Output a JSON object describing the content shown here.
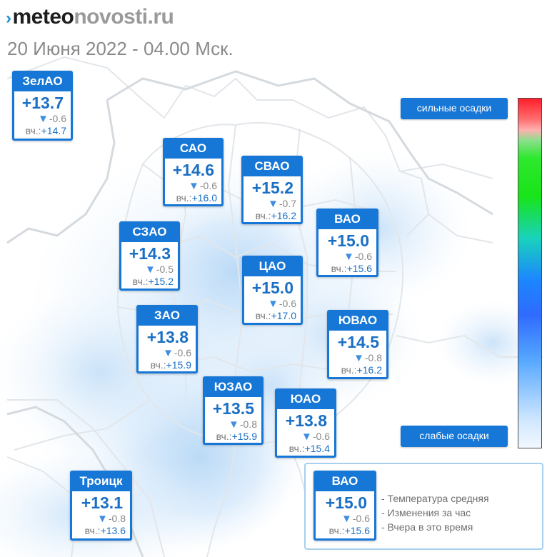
{
  "header": {
    "logo_chevron": "›",
    "logo_bold": "meteo",
    "logo_light": "novosti.ru",
    "subtitle": "20 Июня 2022 - 04.00 Мск."
  },
  "delta_marker": "▼",
  "yesterday_label": "вч.:",
  "districts": [
    {
      "id": "zelao",
      "name": "ЗелАО",
      "temp": "+13.7",
      "delta": "-0.6",
      "yesterday": "+14.7"
    },
    {
      "id": "sao",
      "name": "САО",
      "temp": "+14.6",
      "delta": "-0.6",
      "yesterday": "+16.0"
    },
    {
      "id": "svao",
      "name": "СВАО",
      "temp": "+15.2",
      "delta": "-0.7",
      "yesterday": "+16.2"
    },
    {
      "id": "vao",
      "name": "ВАО",
      "temp": "+15.0",
      "delta": "-0.6",
      "yesterday": "+15.6"
    },
    {
      "id": "szao",
      "name": "СЗАО",
      "temp": "+14.3",
      "delta": "-0.5",
      "yesterday": "+15.2"
    },
    {
      "id": "cao",
      "name": "ЦАО",
      "temp": "+15.0",
      "delta": "-0.6",
      "yesterday": "+17.0"
    },
    {
      "id": "zao",
      "name": "ЗАО",
      "temp": "+13.8",
      "delta": "-0.6",
      "yesterday": "+15.9"
    },
    {
      "id": "yuvao",
      "name": "ЮВАО",
      "temp": "+14.5",
      "delta": "-0.8",
      "yesterday": "+16.2"
    },
    {
      "id": "yuzao",
      "name": "ЮЗАО",
      "temp": "+13.5",
      "delta": "-0.8",
      "yesterday": "+15.9"
    },
    {
      "id": "yuao",
      "name": "ЮАО",
      "temp": "+13.8",
      "delta": "-0.6",
      "yesterday": "+15.4"
    },
    {
      "id": "troick",
      "name": "Троицк",
      "temp": "+13.1",
      "delta": "-0.8",
      "yesterday": "+13.6"
    }
  ],
  "precip_scale": {
    "top_label": "сильные осадки",
    "bottom_label": "слабые осадки"
  },
  "legend": {
    "sample": {
      "name": "ВАО",
      "temp": "+15.0",
      "delta": "-0.6",
      "yesterday": "+15.6"
    },
    "notes": [
      "- Температура средняя",
      "- Изменения за час",
      "- Вчера в это время"
    ]
  },
  "colors": {
    "card_accent": "#1677d6",
    "temperature_text": "#1a6fc4",
    "delta_arrow": "#3f8ee0",
    "precip_light": "#d6e9fb",
    "boundary_lines": "#e2e6ea"
  }
}
